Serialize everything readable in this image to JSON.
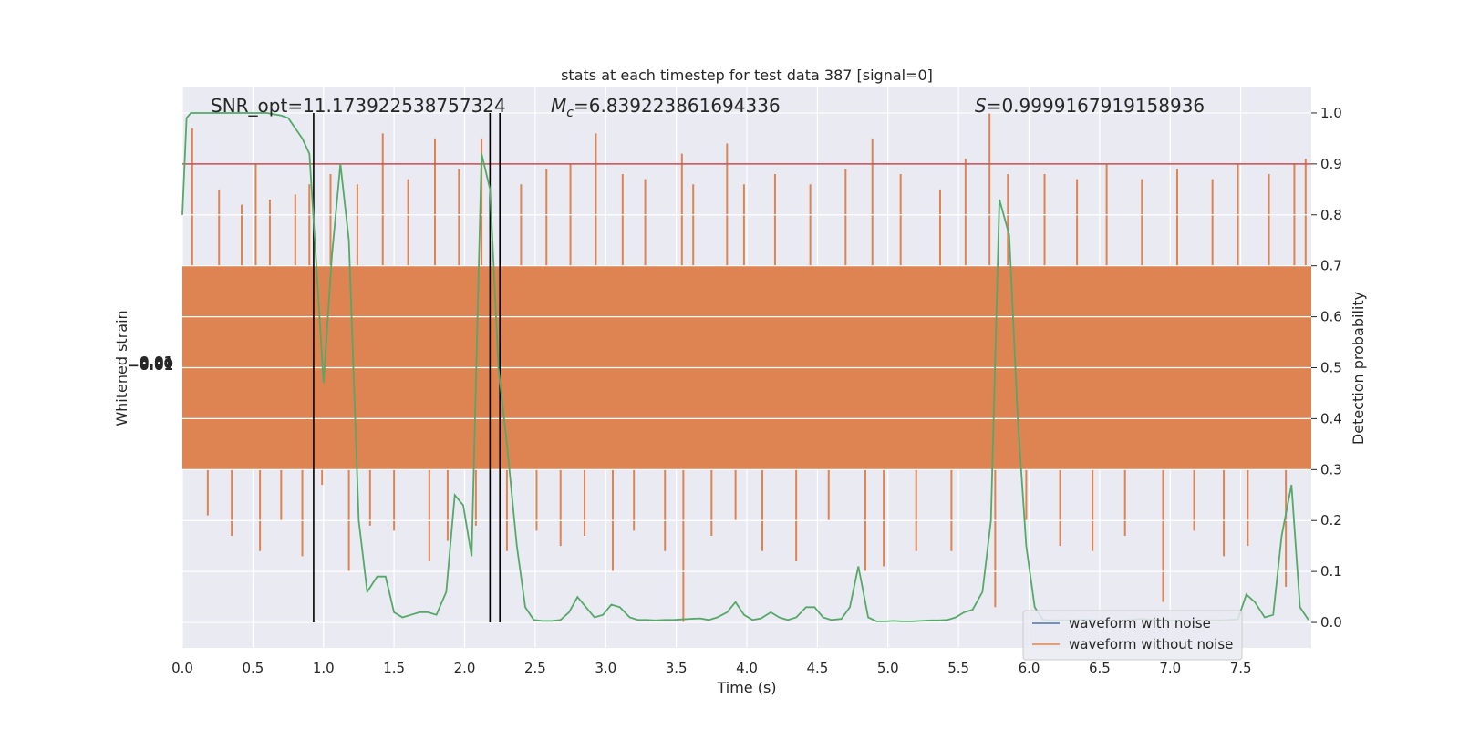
{
  "chart_data": {
    "type": "line",
    "title": "stats at each timestep for test data 387 [signal=0]",
    "xlabel": "Time (s)",
    "ylabel_left": "Whitened strain",
    "ylabel_right": "Detection probability",
    "xlim": [
      0.0,
      8.0
    ],
    "ylim_right": [
      -0.05,
      1.05
    ],
    "x_ticks": [
      "0.0",
      "0.5",
      "1.0",
      "1.5",
      "2.0",
      "2.5",
      "3.0",
      "3.5",
      "4.0",
      "4.5",
      "5.0",
      "5.5",
      "6.0",
      "6.5",
      "7.0",
      "7.5"
    ],
    "x_tick_values": [
      0.0,
      0.5,
      1.0,
      1.5,
      2.0,
      2.5,
      3.0,
      3.5,
      4.0,
      4.5,
      5.0,
      5.5,
      6.0,
      6.5,
      7.0,
      7.5
    ],
    "y_right_ticks": [
      "0.0",
      "0.1",
      "0.2",
      "0.3",
      "0.4",
      "0.5",
      "0.6",
      "0.7",
      "0.8",
      "0.9",
      "1.0"
    ],
    "y_right_tick_values": [
      0.0,
      0.1,
      0.2,
      0.3,
      0.4,
      0.5,
      0.6,
      0.7,
      0.8,
      0.9,
      1.0
    ],
    "grid": true,
    "annotations": {
      "snr": "SNR_opt=11.173922538757324",
      "mc_symbol": "M",
      "mc_subscript": "c",
      "mc_value": "=6.839223861694336",
      "s_symbol": "S",
      "s_value": "=0.9999167919158936"
    },
    "threshold": {
      "value": 0.9,
      "color": "#c44e52"
    },
    "vertical_lines": [
      0.93,
      2.18,
      2.25
    ],
    "noise_band": {
      "low": 0.3,
      "high": 0.7,
      "color": "#dd8452"
    },
    "spikes": [
      [
        0.07,
        0.97
      ],
      [
        0.18,
        0.21
      ],
      [
        0.26,
        0.85
      ],
      [
        0.35,
        0.17
      ],
      [
        0.42,
        0.82
      ],
      [
        0.52,
        0.9
      ],
      [
        0.55,
        0.14
      ],
      [
        0.62,
        0.83
      ],
      [
        0.7,
        0.2
      ],
      [
        0.8,
        0.84
      ],
      [
        0.85,
        0.13
      ],
      [
        0.9,
        0.86
      ],
      [
        0.99,
        0.27
      ],
      [
        1.05,
        0.88
      ],
      [
        1.18,
        0.1
      ],
      [
        1.24,
        0.86
      ],
      [
        1.33,
        0.19
      ],
      [
        1.42,
        0.96
      ],
      [
        1.5,
        0.18
      ],
      [
        1.6,
        0.87
      ],
      [
        1.75,
        0.12
      ],
      [
        1.79,
        0.95
      ],
      [
        1.88,
        0.16
      ],
      [
        1.96,
        0.89
      ],
      [
        2.08,
        0.19
      ],
      [
        2.12,
        0.95
      ],
      [
        2.3,
        0.14
      ],
      [
        2.4,
        0.86
      ],
      [
        2.51,
        0.18
      ],
      [
        2.58,
        0.89
      ],
      [
        2.68,
        0.15
      ],
      [
        2.75,
        0.9
      ],
      [
        2.85,
        0.17
      ],
      [
        2.93,
        0.96
      ],
      [
        3.05,
        0.1
      ],
      [
        3.12,
        0.88
      ],
      [
        3.2,
        0.18
      ],
      [
        3.28,
        0.87
      ],
      [
        3.42,
        0.14
      ],
      [
        3.54,
        0.92
      ],
      [
        3.55,
        0.0
      ],
      [
        3.62,
        0.86
      ],
      [
        3.75,
        0.17
      ],
      [
        3.86,
        0.94
      ],
      [
        3.92,
        0.2
      ],
      [
        3.98,
        0.86
      ],
      [
        4.11,
        0.14
      ],
      [
        4.2,
        0.88
      ],
      [
        4.35,
        0.12
      ],
      [
        4.45,
        0.86
      ],
      [
        4.58,
        0.2
      ],
      [
        4.7,
        0.89
      ],
      [
        4.84,
        0.1
      ],
      [
        4.89,
        0.95
      ],
      [
        4.97,
        0.11
      ],
      [
        5.09,
        0.88
      ],
      [
        5.2,
        0.14
      ],
      [
        5.37,
        0.85
      ],
      [
        5.45,
        0.14
      ],
      [
        5.55,
        0.91
      ],
      [
        5.72,
        1.0
      ],
      [
        5.76,
        0.03
      ],
      [
        5.85,
        0.88
      ],
      [
        5.98,
        0.2
      ],
      [
        6.11,
        0.88
      ],
      [
        6.22,
        0.15
      ],
      [
        6.34,
        0.87
      ],
      [
        6.45,
        0.14
      ],
      [
        6.55,
        0.9
      ],
      [
        6.68,
        0.17
      ],
      [
        6.8,
        0.87
      ],
      [
        6.95,
        0.04
      ],
      [
        7.05,
        0.89
      ],
      [
        7.17,
        0.18
      ],
      [
        7.3,
        0.87
      ],
      [
        7.38,
        0.13
      ],
      [
        7.48,
        0.9
      ],
      [
        7.55,
        0.15
      ],
      [
        7.7,
        0.88
      ],
      [
        7.82,
        0.07
      ],
      [
        7.88,
        0.9
      ],
      [
        7.96,
        0.91
      ]
    ],
    "series": [
      {
        "name": "waveform with noise",
        "color": "#4c72b0",
        "values": []
      },
      {
        "name": "waveform without noise",
        "color": "#dd8452",
        "values": []
      },
      {
        "color": "#55a868",
        "x": [
          0.0,
          0.03,
          0.06,
          0.12,
          0.2,
          0.3,
          0.4,
          0.5,
          0.6,
          0.7,
          0.75,
          0.8,
          0.85,
          0.9,
          0.95,
          1.0,
          1.06,
          1.12,
          1.18,
          1.25,
          1.31,
          1.38,
          1.44,
          1.5,
          1.56,
          1.62,
          1.68,
          1.74,
          1.8,
          1.87,
          1.93,
          1.99,
          2.05,
          2.12,
          2.18,
          2.24,
          2.3,
          2.37,
          2.43,
          2.49,
          2.55,
          2.62,
          2.68,
          2.74,
          2.8,
          2.86,
          2.92,
          2.98,
          3.04,
          3.1,
          3.17,
          3.23,
          3.29,
          3.35,
          3.42,
          3.48,
          3.54,
          3.6,
          3.67,
          3.73,
          3.79,
          3.86,
          3.92,
          3.98,
          4.04,
          4.1,
          4.17,
          4.23,
          4.29,
          4.35,
          4.42,
          4.48,
          4.54,
          4.6,
          4.67,
          4.73,
          4.79,
          4.86,
          4.92,
          4.98,
          5.04,
          5.1,
          5.17,
          5.23,
          5.3,
          5.36,
          5.42,
          5.48,
          5.54,
          5.6,
          5.67,
          5.73,
          5.79,
          5.86,
          5.92,
          5.98,
          6.04,
          6.1,
          6.17,
          6.23,
          6.29,
          6.35,
          6.42,
          6.48,
          6.54,
          6.6,
          6.67,
          6.73,
          6.79,
          6.86,
          6.92,
          6.98,
          7.04,
          7.1,
          7.17,
          7.23,
          7.29,
          7.35,
          7.42,
          7.48,
          7.54,
          7.6,
          7.67,
          7.73,
          7.79,
          7.86,
          7.92,
          7.98
        ],
        "values": [
          0.8,
          0.99,
          1.0,
          1.0,
          1.0,
          1.0,
          1.0,
          1.0,
          1.0,
          0.995,
          0.99,
          0.97,
          0.95,
          0.92,
          0.7,
          0.47,
          0.72,
          0.9,
          0.75,
          0.2,
          0.06,
          0.09,
          0.09,
          0.02,
          0.01,
          0.015,
          0.02,
          0.02,
          0.015,
          0.06,
          0.25,
          0.23,
          0.13,
          0.92,
          0.85,
          0.5,
          0.35,
          0.15,
          0.03,
          0.005,
          0.003,
          0.003,
          0.005,
          0.02,
          0.05,
          0.03,
          0.01,
          0.015,
          0.035,
          0.03,
          0.01,
          0.005,
          0.005,
          0.004,
          0.005,
          0.005,
          0.006,
          0.007,
          0.008,
          0.005,
          0.01,
          0.02,
          0.04,
          0.015,
          0.005,
          0.008,
          0.02,
          0.01,
          0.005,
          0.01,
          0.03,
          0.03,
          0.01,
          0.005,
          0.007,
          0.03,
          0.11,
          0.01,
          0.002,
          0.002,
          0.003,
          0.002,
          0.002,
          0.003,
          0.004,
          0.004,
          0.005,
          0.01,
          0.02,
          0.025,
          0.06,
          0.2,
          0.83,
          0.76,
          0.4,
          0.15,
          0.03,
          0.005,
          0.004,
          0.004,
          0.004,
          0.005,
          0.005,
          0.004,
          0.004,
          0.003,
          0.004,
          0.005,
          0.007,
          0.005,
          0.005,
          0.004,
          0.004,
          0.003,
          0.003,
          0.004,
          0.004,
          0.004,
          0.005,
          0.006,
          0.055,
          0.04,
          0.01,
          0.015,
          0.17,
          0.27,
          0.03,
          0.005
        ]
      }
    ]
  },
  "left_axis_ticks": [
    "−0.01",
    "0.00",
    "0.01"
  ]
}
